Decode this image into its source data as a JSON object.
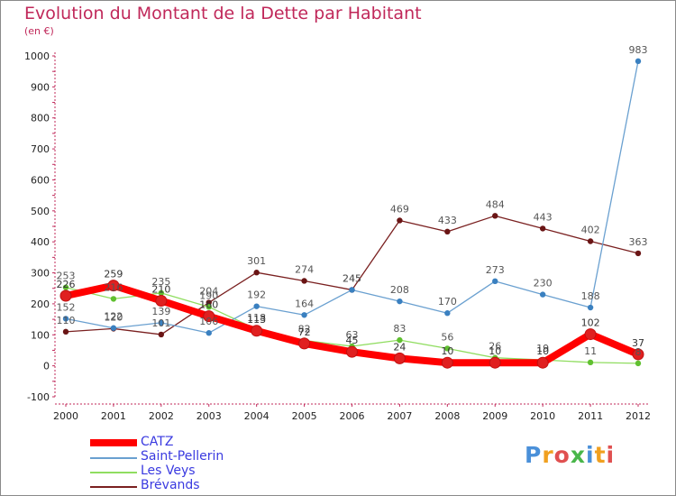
{
  "title": "Evolution du Montant de la Dette par Habitant",
  "subtitle": "(en €)",
  "logo": {
    "letters": [
      "P",
      "r",
      "o",
      "x",
      "i",
      "t",
      "i"
    ],
    "colors": [
      "#4a90d9",
      "#f0a020",
      "#e05050",
      "#49b64a",
      "#4a90d9",
      "#f0a020",
      "#e05050"
    ]
  },
  "chart_data": {
    "type": "line",
    "x": [
      "2000",
      "2001",
      "2002",
      "2003",
      "2004",
      "2005",
      "2006",
      "2007",
      "2008",
      "2009",
      "2010",
      "2011",
      "2012"
    ],
    "ylim": [
      -100,
      1000
    ],
    "yticks": [
      "-100",
      "0",
      "100",
      "200",
      "300",
      "400",
      "500",
      "600",
      "700",
      "800",
      "900",
      "1000"
    ],
    "grid": false,
    "legend_position": "bottom-left",
    "series": [
      {
        "name": "CATZ",
        "color": "#ff0000",
        "marker": "#e02020",
        "values": [
          226,
          259,
          210,
          160,
          113,
          72,
          45,
          24,
          10,
          10,
          10,
          102,
          37
        ],
        "labels": [
          "226",
          "259",
          "210",
          "160",
          "113",
          "72",
          "45",
          "24",
          "10",
          "10",
          "10",
          "102",
          "37"
        ]
      },
      {
        "name": "Saint-Pellerin",
        "color": "#6aa0d0",
        "marker": "#3a80c0",
        "values": [
          152,
          122,
          139,
          106,
          192,
          164,
          245,
          208,
          170,
          273,
          230,
          188,
          983
        ],
        "labels": [
          "152",
          "122",
          "139",
          "106",
          "192",
          "164",
          "245",
          "208",
          "170",
          "273",
          "230",
          "188",
          "983"
        ]
      },
      {
        "name": "Les Veys",
        "color": "#90dd60",
        "marker": "#60c030",
        "values": [
          253,
          216,
          235,
          190,
          118,
          82,
          63,
          83,
          56,
          26,
          19,
          11,
          8
        ],
        "labels": [
          "253",
          "216",
          "235",
          "190",
          "118",
          "82",
          "63",
          "83",
          "56",
          "26",
          "19",
          "11",
          "8"
        ]
      },
      {
        "name": "Brévands",
        "color": "#7a2020",
        "marker": "#6a1515",
        "values": [
          110,
          120,
          101,
          204,
          301,
          274,
          245,
          469,
          433,
          484,
          443,
          402,
          363
        ],
        "labels": [
          "110",
          "120",
          "101",
          "204",
          "301",
          "274",
          "245",
          "469",
          "433",
          "484",
          "443",
          "402",
          "363"
        ]
      }
    ]
  }
}
